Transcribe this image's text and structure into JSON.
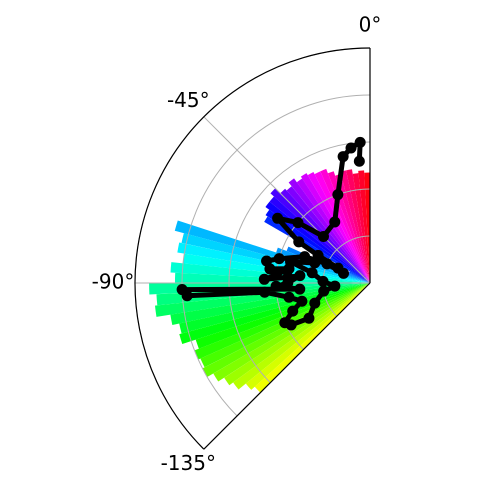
{
  "chart_data": {
    "type": "polar-bar",
    "title": "",
    "angle_range_deg": [
      -135,
      0
    ],
    "angle_zero": "top",
    "radial_range": [
      0,
      1
    ],
    "radial_ticks": [
      0.2,
      0.4,
      0.6,
      0.8,
      1.0
    ],
    "grid": true,
    "angle_ticks": [
      {
        "deg": 0,
        "label": "0°"
      },
      {
        "deg": -45,
        "label": "-45°"
      },
      {
        "deg": -90,
        "label": "-90°"
      },
      {
        "deg": -135,
        "label": "-135°"
      }
    ],
    "bars": {
      "angles_deg": [
        -1.5,
        -4.5,
        -7.5,
        -10.5,
        -13.5,
        -16.5,
        -19.5,
        -22.5,
        -25.5,
        -28.5,
        -31.5,
        -34.5,
        -37.5,
        -40.5,
        -43.5,
        -46.5,
        -49.5,
        -52.5,
        -55.5,
        -58.5,
        -61.5,
        -64.5,
        -67.5,
        -70.5,
        -73.5,
        -76.5,
        -79.5,
        -82.5,
        -85.5,
        -88.5,
        -91.5,
        -94.5,
        -97.5,
        -100.5,
        -103.5,
        -106.5,
        -109.5,
        -112.5,
        -115.5,
        -118.5,
        -121.5,
        -124.5,
        -127.5,
        -130.5,
        -133.5
      ],
      "radii": [
        0.47,
        0.48,
        0.47,
        0.49,
        0.49,
        0.48,
        0.5,
        0.52,
        0.52,
        0.53,
        0.54,
        0.53,
        0.55,
        0.53,
        0.54,
        0.57,
        0.55,
        0.55,
        0.53,
        0.52,
        0.1,
        0.12,
        0.38,
        0.42,
        0.86,
        0.82,
        0.83,
        0.8,
        0.85,
        0.83,
        0.94,
        0.91,
        0.92,
        0.86,
        0.83,
        0.84,
        0.78,
        0.8,
        0.79,
        0.8,
        0.77,
        0.74,
        0.72,
        0.68,
        0.66
      ],
      "width_deg": 3.0
    },
    "series": [
      {
        "type": "line-markers",
        "color": "#000000",
        "points_deg_r": [
          [
            -5,
            0.52
          ],
          [
            -4,
            0.6
          ],
          [
            -8,
            0.58
          ],
          [
            -12,
            0.55
          ],
          [
            -20,
            0.4
          ],
          [
            -30,
            0.3
          ],
          [
            -45,
            0.28
          ],
          [
            -50,
            0.4
          ],
          [
            -55,
            0.48
          ],
          [
            -60,
            0.35
          ],
          [
            -62,
            0.25
          ],
          [
            -65,
            0.15
          ],
          [
            -70,
            0.12
          ],
          [
            -66,
            0.2
          ],
          [
            -68,
            0.3
          ],
          [
            -75,
            0.4
          ],
          [
            -78,
            0.45
          ],
          [
            -82,
            0.43
          ],
          [
            -80,
            0.35
          ],
          [
            -85,
            0.4
          ],
          [
            -88,
            0.45
          ],
          [
            -86,
            0.35
          ],
          [
            -84,
            0.3
          ],
          [
            -90,
            0.35
          ],
          [
            -92,
            0.4
          ],
          [
            -95,
            0.3
          ],
          [
            -92,
            0.8
          ],
          [
            -94,
            0.78
          ],
          [
            -95,
            0.45
          ],
          [
            -100,
            0.35
          ],
          [
            -105,
            0.3
          ],
          [
            -110,
            0.35
          ],
          [
            -115,
            0.4
          ],
          [
            -118,
            0.38
          ],
          [
            -120,
            0.3
          ],
          [
            -110,
            0.25
          ],
          [
            -100,
            0.2
          ],
          [
            -95,
            0.15
          ],
          [
            -88,
            0.2
          ],
          [
            -80,
            0.25
          ],
          [
            -75,
            0.35
          ],
          [
            -70,
            0.25
          ]
        ]
      }
    ]
  }
}
